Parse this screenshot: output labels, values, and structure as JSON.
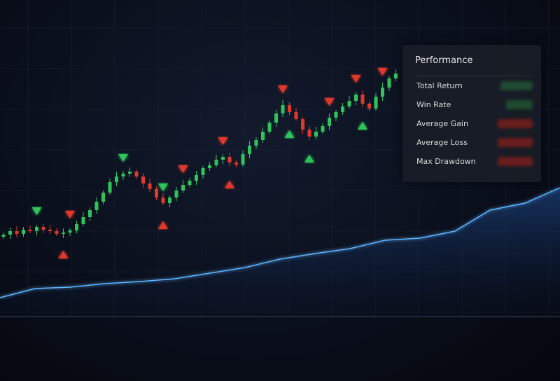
{
  "panel": {
    "title": "Performance",
    "metrics": [
      {
        "label": "Total Return",
        "tone": "positive"
      },
      {
        "label": "Win Rate",
        "tone": "positive"
      },
      {
        "label": "Average Gain",
        "tone": "negative"
      },
      {
        "label": "Average Loss",
        "tone": "negative"
      },
      {
        "label": "Max Drawdown",
        "tone": "negative"
      }
    ]
  },
  "colors": {
    "up": "#2fc45a",
    "down": "#e0392b",
    "equity": "#5fb4ff",
    "positive": "#1f4a30",
    "negative": "#6a1d1d"
  },
  "chart_data": {
    "type": "candlestick",
    "grid": true,
    "closes": [
      165,
      170,
      166,
      172,
      170,
      176,
      172,
      170,
      166,
      168,
      171,
      180,
      190,
      200,
      212,
      225,
      240,
      248,
      252,
      255,
      248,
      238,
      230,
      218,
      210,
      218,
      228,
      236,
      242,
      250,
      260,
      264,
      272,
      276,
      268,
      265,
      280,
      292,
      300,
      312,
      325,
      338,
      350,
      340,
      330,
      315,
      305,
      312,
      320,
      332,
      340,
      348,
      356,
      365,
      352,
      345,
      362,
      375,
      388,
      395
    ],
    "markers": [
      {
        "index": 5,
        "color": "green",
        "direction": "down"
      },
      {
        "index": 18,
        "color": "green",
        "direction": "down"
      },
      {
        "index": 24,
        "color": "green",
        "direction": "down"
      },
      {
        "index": 10,
        "color": "red",
        "direction": "down"
      },
      {
        "index": 27,
        "color": "red",
        "direction": "down"
      },
      {
        "index": 33,
        "color": "red",
        "direction": "down"
      },
      {
        "index": 42,
        "color": "red",
        "direction": "down"
      },
      {
        "index": 49,
        "color": "red",
        "direction": "down"
      },
      {
        "index": 53,
        "color": "red",
        "direction": "down"
      },
      {
        "index": 57,
        "color": "red",
        "direction": "down"
      },
      {
        "index": 9,
        "color": "red",
        "direction": "up"
      },
      {
        "index": 24,
        "color": "red",
        "direction": "up"
      },
      {
        "index": 34,
        "color": "red",
        "direction": "up"
      },
      {
        "index": 43,
        "color": "green",
        "direction": "up"
      },
      {
        "index": 46,
        "color": "green",
        "direction": "up"
      },
      {
        "index": 54,
        "color": "green",
        "direction": "up"
      }
    ],
    "equity": [
      75,
      88,
      90,
      95,
      98,
      102,
      110,
      118,
      130,
      138,
      145,
      157,
      160,
      170,
      200,
      210,
      232
    ]
  }
}
